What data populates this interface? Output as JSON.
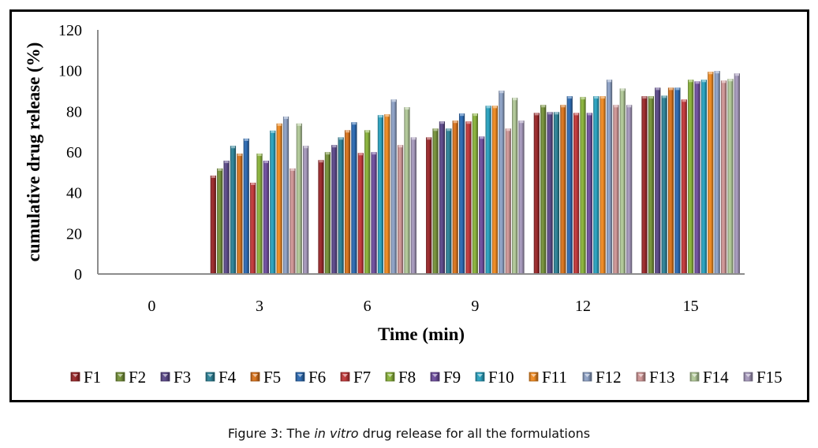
{
  "caption": {
    "prefix": "Figure 3: The ",
    "italic": "in vitro",
    "suffix": " drug release for all the formulations"
  },
  "chart_data": {
    "type": "bar",
    "title": "",
    "xlabel": "Time (min)",
    "ylabel": "cumulative drug release (%)",
    "ylim": [
      0,
      120
    ],
    "yticks": [
      0,
      20,
      40,
      60,
      80,
      100,
      120
    ],
    "grid": false,
    "legend_position": "bottom",
    "categories": [
      "0",
      "3",
      "6",
      "9",
      "12",
      "15"
    ],
    "series": [
      {
        "name": "F1",
        "color": "#9b2a2c",
        "values": [
          0,
          48.4,
          56.0,
          67.2,
          79.2,
          87.4
        ]
      },
      {
        "name": "F2",
        "color": "#76923b",
        "values": [
          0,
          51.9,
          59.9,
          71.5,
          83.1,
          87.4
        ]
      },
      {
        "name": "F3",
        "color": "#5d4a8a",
        "values": [
          0,
          55.7,
          63.4,
          75.0,
          79.6,
          91.6
        ]
      },
      {
        "name": "F4",
        "color": "#2f8398",
        "values": [
          0,
          63.0,
          67.2,
          71.5,
          79.6,
          87.7
        ]
      },
      {
        "name": "F5",
        "color": "#d9741e",
        "values": [
          0,
          59.2,
          70.7,
          75.4,
          83.1,
          91.6
        ]
      },
      {
        "name": "F6",
        "color": "#2e6bb2",
        "values": [
          0,
          66.6,
          74.6,
          78.9,
          87.4,
          91.6
        ]
      },
      {
        "name": "F7",
        "color": "#c23a3c",
        "values": [
          0,
          44.9,
          59.5,
          75.0,
          79.2,
          85.8
        ]
      },
      {
        "name": "F8",
        "color": "#8ab33c",
        "values": [
          0,
          59.2,
          70.7,
          78.9,
          87.0,
          95.5
        ]
      },
      {
        "name": "F9",
        "color": "#6f4f9e",
        "values": [
          0,
          55.7,
          59.9,
          67.6,
          79.2,
          94.7
        ]
      },
      {
        "name": "F10",
        "color": "#2ba2bf",
        "values": [
          0,
          70.5,
          78.1,
          82.7,
          87.4,
          95.5
        ]
      },
      {
        "name": "F11",
        "color": "#ef8a22",
        "values": [
          0,
          74.0,
          78.5,
          82.7,
          87.4,
          99.4
        ]
      },
      {
        "name": "F12",
        "color": "#8ea2c6",
        "values": [
          0,
          77.4,
          85.8,
          90.1,
          95.5,
          99.8
        ]
      },
      {
        "name": "F13",
        "color": "#cf9696",
        "values": [
          0,
          51.9,
          63.4,
          71.5,
          83.1,
          95.1
        ]
      },
      {
        "name": "F14",
        "color": "#b1c898",
        "values": [
          0,
          74.0,
          82.0,
          86.6,
          91.2,
          95.9
        ]
      },
      {
        "name": "F15",
        "color": "#a699bc",
        "values": [
          0,
          63.0,
          67.2,
          75.4,
          83.1,
          98.6
        ]
      }
    ]
  }
}
